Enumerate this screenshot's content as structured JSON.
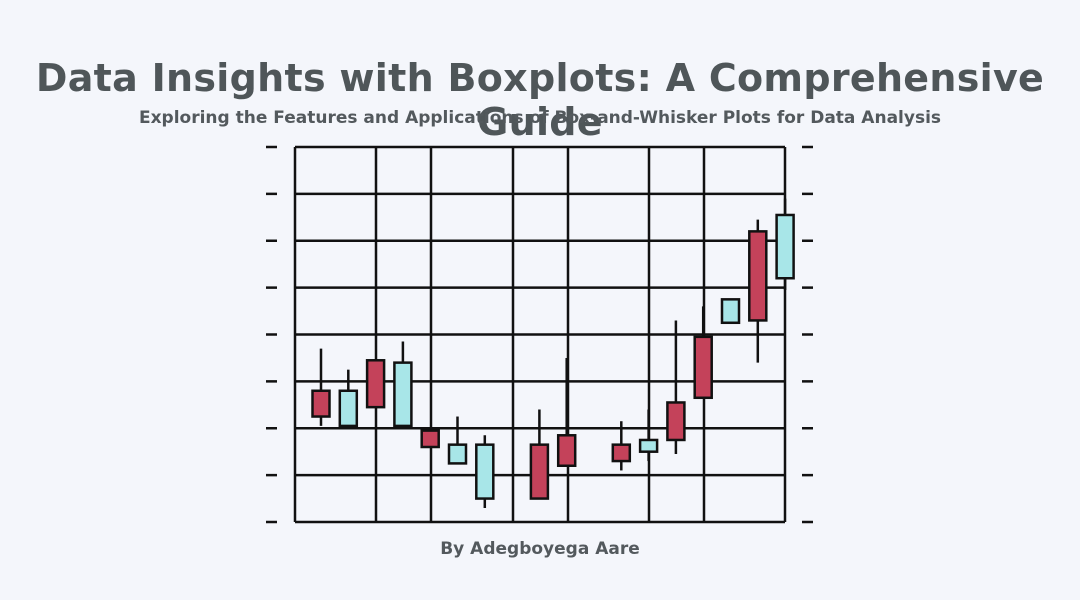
{
  "page": {
    "title": "Data Insights with Boxplots: A Comprehensive Guide",
    "subtitle": "Exploring the Features and Applications of Box-and-Whisker Plots for Data Analysis",
    "author": "By Adegboyega Aare"
  },
  "colors": {
    "background": "#f4f6fb",
    "grid": "#111111",
    "bearish": "#c4425a",
    "bullish": "#a8e6e8",
    "outline": "#111111"
  },
  "chart_data": {
    "type": "candlestick",
    "ylim": [
      0,
      8
    ],
    "xlim": [
      0,
      18
    ],
    "grid": true,
    "candles": [
      {
        "x": 1,
        "open": 2.8,
        "close": 2.25,
        "high": 3.7,
        "low": 2.05
      },
      {
        "x": 2,
        "open": 2.05,
        "close": 2.8,
        "high": 3.25,
        "low": 2.05
      },
      {
        "x": 3,
        "open": 3.45,
        "close": 2.45,
        "high": 3.45,
        "low": 2.45
      },
      {
        "x": 4,
        "open": 2.05,
        "close": 3.4,
        "high": 3.85,
        "low": 2.05
      },
      {
        "x": 5,
        "open": 1.95,
        "close": 1.6,
        "high": 1.95,
        "low": 1.6
      },
      {
        "x": 6,
        "open": 1.25,
        "close": 1.65,
        "high": 2.25,
        "low": 1.25
      },
      {
        "x": 7,
        "open": 0.5,
        "close": 1.65,
        "high": 1.85,
        "low": 0.3
      },
      {
        "x": 9,
        "open": 1.65,
        "close": 0.5,
        "high": 2.4,
        "low": 0.5
      },
      {
        "x": 10,
        "open": 1.85,
        "close": 1.2,
        "high": 3.5,
        "low": 1.2
      },
      {
        "x": 12,
        "open": 1.65,
        "close": 1.3,
        "high": 2.15,
        "low": 1.1
      },
      {
        "x": 13,
        "open": 1.5,
        "close": 1.75,
        "high": 2.4,
        "low": 1.3
      },
      {
        "x": 14,
        "open": 2.55,
        "close": 1.75,
        "high": 4.3,
        "low": 1.45
      },
      {
        "x": 15,
        "open": 3.95,
        "close": 2.65,
        "high": 4.6,
        "low": 2.65
      },
      {
        "x": 16,
        "open": 4.25,
        "close": 4.75,
        "high": 4.75,
        "low": 4.25
      },
      {
        "x": 17,
        "open": 6.2,
        "close": 4.3,
        "high": 6.45,
        "low": 3.4
      },
      {
        "x": 18,
        "open": 5.2,
        "close": 6.55,
        "high": 6.9,
        "low": 4.95
      }
    ]
  }
}
